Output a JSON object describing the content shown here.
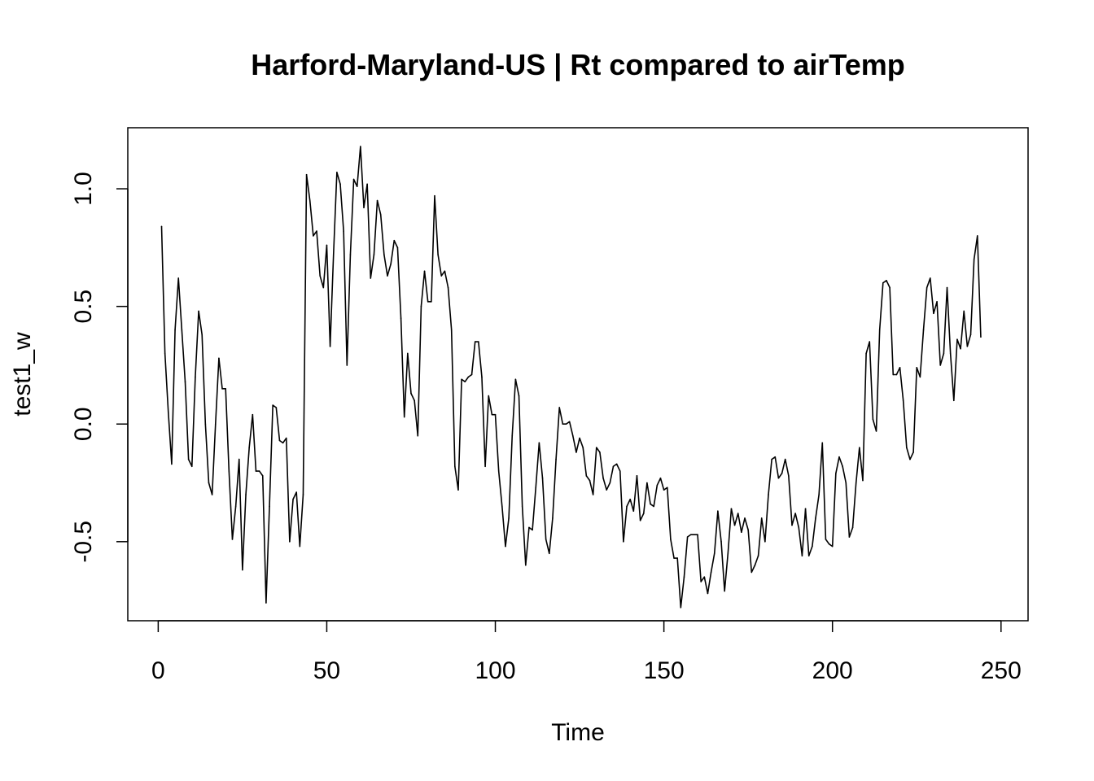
{
  "chart_data": {
    "type": "line",
    "title": "Harford-Maryland-US | Rt compared to airTemp",
    "xlabel": "Time",
    "ylabel": "test1_w",
    "xlim": [
      1,
      248
    ],
    "ylim": [
      -0.76,
      1.18
    ],
    "x_ticks": [
      0,
      50,
      100,
      150,
      200,
      250
    ],
    "x_tick_labels": [
      "0",
      "50",
      "100",
      "150",
      "200",
      "250"
    ],
    "y_ticks": [
      -0.5,
      0.0,
      0.5,
      1.0
    ],
    "y_tick_labels": [
      "-0.5",
      "0.0",
      "0.5",
      "1.0"
    ],
    "grid": false,
    "series": [
      {
        "x_start": 1,
        "values": [
          0.84,
          0.3,
          0.05,
          -0.17,
          0.4,
          0.62,
          0.4,
          0.18,
          -0.15,
          -0.18,
          0.2,
          0.48,
          0.38,
          0.0,
          -0.25,
          -0.3,
          0.0,
          0.28,
          0.15,
          0.15,
          -0.2,
          -0.49,
          -0.35,
          -0.15,
          -0.62,
          -0.3,
          -0.1,
          0.04,
          -0.2,
          -0.2,
          -0.22,
          -0.76,
          -0.35,
          0.08,
          0.07,
          -0.07,
          -0.08,
          -0.06,
          -0.5,
          -0.32,
          -0.29,
          -0.52,
          -0.3,
          1.06,
          0.95,
          0.8,
          0.82,
          0.63,
          0.58,
          0.76,
          0.33,
          0.72,
          1.07,
          1.02,
          0.82,
          0.25,
          0.72,
          1.04,
          1.01,
          1.18,
          0.92,
          1.02,
          0.62,
          0.72,
          0.95,
          0.89,
          0.72,
          0.63,
          0.68,
          0.78,
          0.75,
          0.45,
          0.03,
          0.3,
          0.13,
          0.1,
          -0.05,
          0.5,
          0.65,
          0.52,
          0.52,
          0.97,
          0.72,
          0.63,
          0.65,
          0.58,
          0.4,
          -0.18,
          -0.28,
          0.19,
          0.18,
          0.2,
          0.21,
          0.35,
          0.35,
          0.2,
          -0.18,
          0.12,
          0.04,
          0.04,
          -0.2,
          -0.35,
          -0.52,
          -0.4,
          -0.05,
          0.19,
          0.12,
          -0.35,
          -0.6,
          -0.44,
          -0.45,
          -0.27,
          -0.08,
          -0.23,
          -0.49,
          -0.55,
          -0.4,
          -0.15,
          0.07,
          0.0,
          0.0,
          0.01,
          -0.05,
          -0.12,
          -0.06,
          -0.1,
          -0.22,
          -0.24,
          -0.3,
          -0.1,
          -0.12,
          -0.23,
          -0.28,
          -0.25,
          -0.18,
          -0.17,
          -0.2,
          -0.5,
          -0.35,
          -0.32,
          -0.37,
          -0.22,
          -0.41,
          -0.38,
          -0.25,
          -0.34,
          -0.35,
          -0.26,
          -0.23,
          -0.28,
          -0.27,
          -0.49,
          -0.57,
          -0.57,
          -0.78,
          -0.65,
          -0.48,
          -0.47,
          -0.47,
          -0.47,
          -0.67,
          -0.65,
          -0.72,
          -0.63,
          -0.55,
          -0.37,
          -0.5,
          -0.71,
          -0.55,
          -0.36,
          -0.43,
          -0.38,
          -0.46,
          -0.4,
          -0.45,
          -0.63,
          -0.6,
          -0.56,
          -0.4,
          -0.5,
          -0.3,
          -0.15,
          -0.14,
          -0.23,
          -0.21,
          -0.15,
          -0.22,
          -0.43,
          -0.38,
          -0.44,
          -0.56,
          -0.36,
          -0.56,
          -0.52,
          -0.4,
          -0.3,
          -0.08,
          -0.49,
          -0.51,
          -0.52,
          -0.21,
          -0.14,
          -0.18,
          -0.25,
          -0.48,
          -0.44,
          -0.25,
          -0.1,
          -0.24,
          0.3,
          0.35,
          0.02,
          -0.03,
          0.4,
          0.6,
          0.61,
          0.58,
          0.21,
          0.21,
          0.24,
          0.1,
          -0.1,
          -0.15,
          -0.12,
          0.24,
          0.2,
          0.4,
          0.58,
          0.62,
          0.47,
          0.52,
          0.25,
          0.3,
          0.58,
          0.3,
          0.1,
          0.36,
          0.32,
          0.48,
          0.33,
          0.38,
          0.7,
          0.8,
          0.37
        ]
      }
    ]
  }
}
